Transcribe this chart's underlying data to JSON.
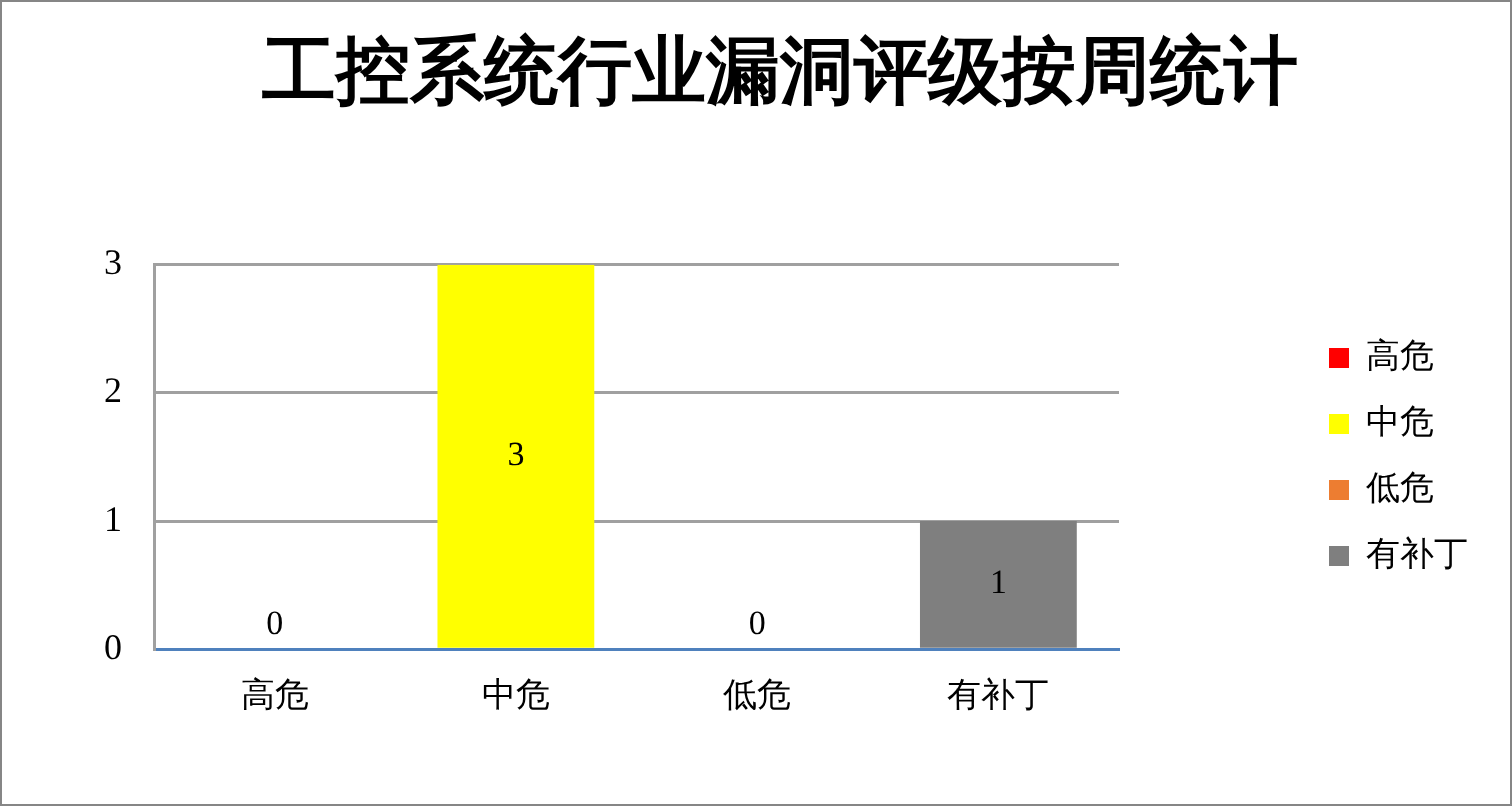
{
  "chart_data": {
    "type": "bar",
    "title": "工控系统行业漏洞评级按周统计",
    "categories": [
      "高危",
      "中危",
      "低危",
      "有补丁"
    ],
    "series": [
      {
        "name": "高危",
        "color": "#ff0000",
        "values": [
          0,
          null,
          null,
          null
        ]
      },
      {
        "name": "中危",
        "color": "#ffff00",
        "values": [
          null,
          3,
          null,
          null
        ]
      },
      {
        "name": "低危",
        "color": "#ed7d31",
        "values": [
          null,
          null,
          0,
          null
        ]
      },
      {
        "name": "有补丁",
        "color": "#7f7f7f",
        "values": [
          null,
          null,
          null,
          1
        ]
      }
    ],
    "ylim": [
      0,
      3
    ],
    "yticks": [
      0,
      1,
      2,
      3
    ],
    "grid": "y",
    "legend": "right",
    "data_labels": true
  }
}
